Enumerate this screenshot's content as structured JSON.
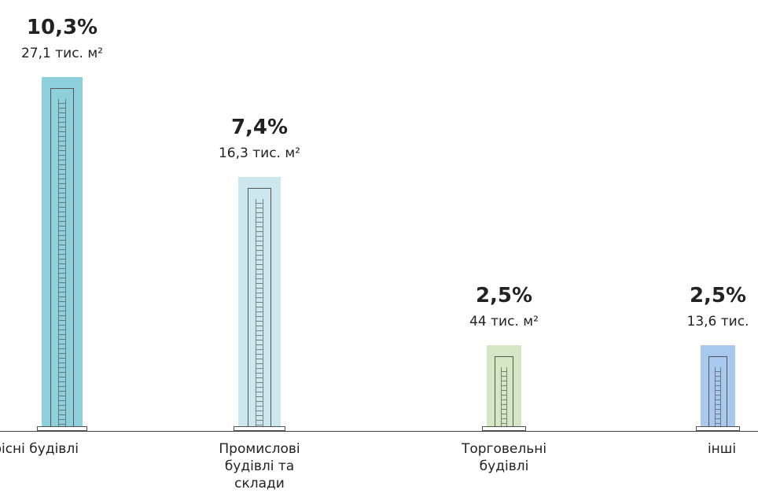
{
  "chart_data": {
    "type": "bar",
    "categories": [
      "Офісні будівлі",
      "Промислові будівлі та склади",
      "Торговельні будівлі",
      "інші"
    ],
    "values": [
      10.3,
      7.4,
      2.5,
      2.5
    ],
    "value_labels": [
      "10,3%",
      "7,4%",
      "2,5%",
      "2,5%"
    ],
    "area_labels": [
      "27,1 тис. м²",
      "16,3 тис. м²",
      "44 тис. м²",
      "13,6 тис."
    ],
    "colors": [
      "#8ecfdc",
      "#cce8ee",
      "#d4e6c3",
      "#a9c8ee"
    ]
  }
}
